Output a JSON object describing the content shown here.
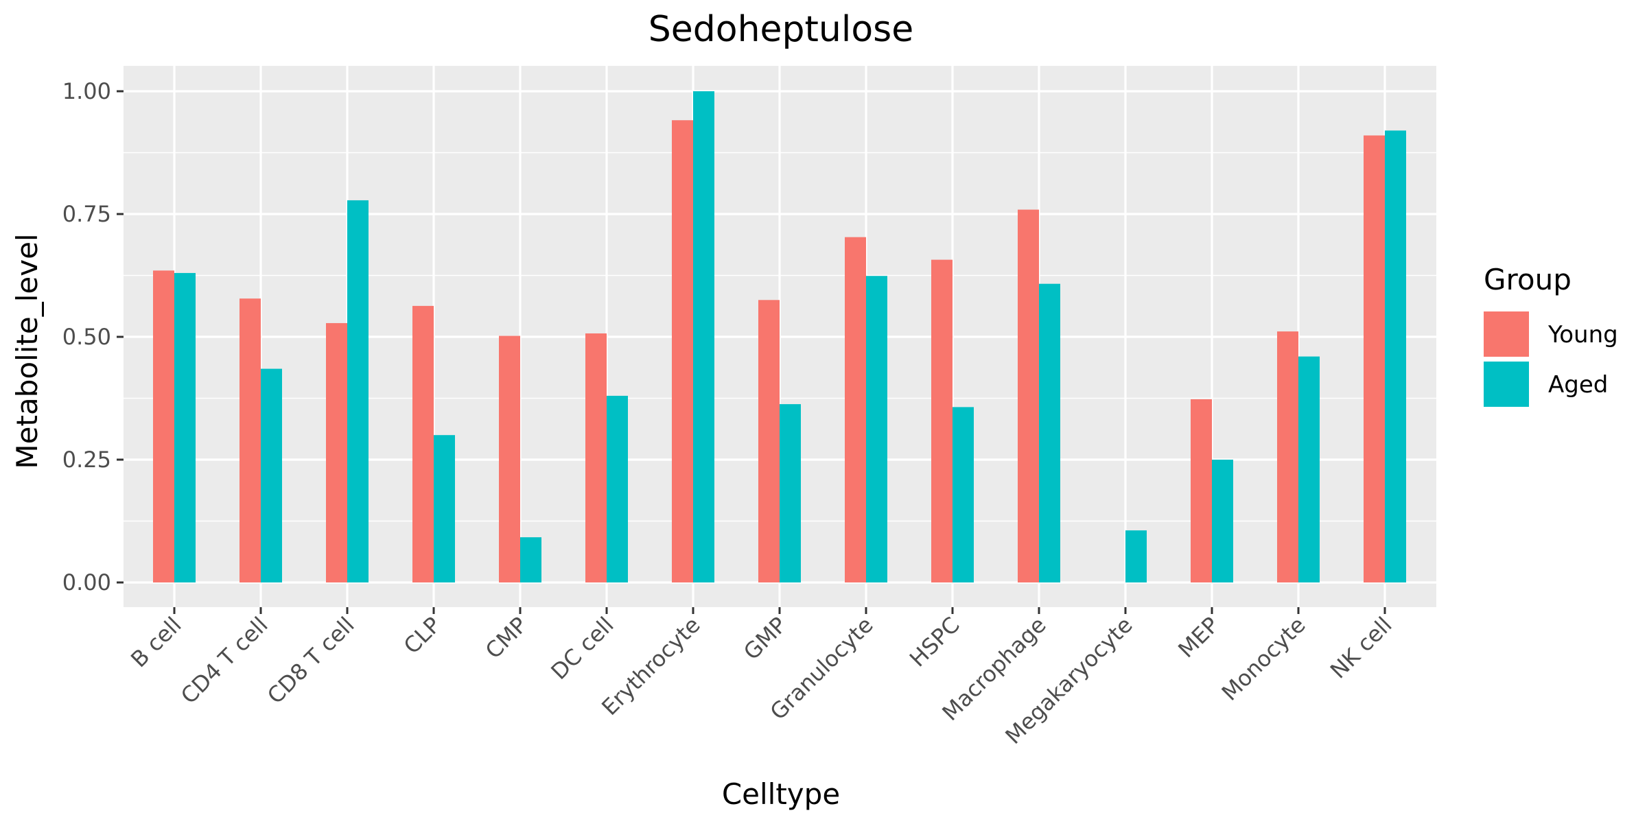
{
  "chart_data": {
    "type": "bar",
    "title": "Sedoheptulose",
    "xlabel": "Celltype",
    "ylabel": "Metabolite_level",
    "categories": [
      "B cell",
      "CD4 T cell",
      "CD8 T cell",
      "CLP",
      "CMP",
      "DC cell",
      "Erythrocyte",
      "GMP",
      "Granulocyte",
      "HSPC",
      "Macrophage",
      "Megakaryocyte",
      "MEP",
      "Monocyte",
      "NK cell"
    ],
    "series": [
      {
        "name": "Young",
        "color": "#F8766D",
        "values": [
          0.635,
          0.578,
          0.528,
          0.563,
          0.502,
          0.507,
          0.941,
          0.575,
          0.703,
          0.657,
          0.759,
          null,
          0.373,
          0.511,
          0.91
        ]
      },
      {
        "name": "Aged",
        "color": "#00BFC4",
        "values": [
          0.63,
          0.435,
          0.778,
          0.3,
          0.092,
          0.38,
          1.0,
          0.363,
          0.624,
          0.357,
          0.608,
          0.106,
          0.25,
          0.46,
          0.92
        ]
      }
    ],
    "ylim": [
      0,
      1
    ],
    "yticks": [
      0.0,
      0.25,
      0.5,
      0.75,
      1.0
    ],
    "ytick_labels": [
      "0.00",
      "0.25",
      "0.50",
      "0.75",
      "1.00"
    ],
    "grid": true,
    "panel_background": "#EBEBEB",
    "legend": {
      "title": "Group",
      "placement": "right",
      "entries": [
        "Young",
        "Aged"
      ]
    }
  }
}
